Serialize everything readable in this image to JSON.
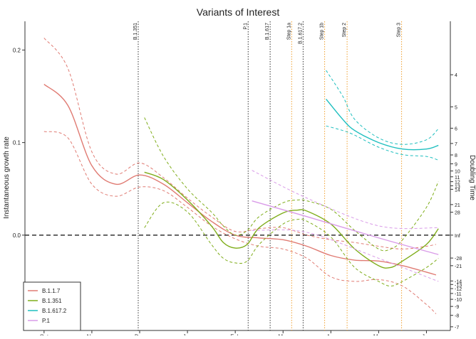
{
  "chart_data": {
    "type": "line",
    "title": "Variants of Interest",
    "y_label": "Instantaneous growth rate",
    "y2_label": "Doubling Time",
    "xlim": [
      -0.4,
      8.5
    ],
    "xticks": [
      {
        "value": 0,
        "label": "Oct"
      },
      {
        "value": 1,
        "label": "Nov"
      },
      {
        "value": 2,
        "label": "Dec"
      },
      {
        "value": 3,
        "label": "Jan"
      },
      {
        "value": 4,
        "label": "Feb"
      },
      {
        "value": 5,
        "label": "Mar"
      },
      {
        "value": 6,
        "label": "Apr"
      },
      {
        "value": 7,
        "label": "May"
      },
      {
        "value": 8,
        "label": "Jun"
      }
    ],
    "ylim": [
      -0.103,
      0.231
    ],
    "yticks": [
      {
        "value": 0,
        "label": "0.0"
      },
      0.1,
      0.2
    ],
    "y2scale": "doubling-time",
    "y2lim": [
      -6.73,
      3.0
    ],
    "y2ticks": [
      4,
      5,
      6,
      7,
      8,
      9,
      10,
      11,
      12,
      13,
      14,
      21,
      28,
      {
        "value": null,
        "label": "Inf"
      },
      -28,
      -21,
      -14,
      -13,
      -12,
      -11,
      -10,
      -9,
      -8,
      -7
    ],
    "hline": 0,
    "legend": "lower left",
    "vlines": [
      {
        "x": 1.97,
        "label": "B.1.351",
        "color": "#333333"
      },
      {
        "x": 4.27,
        "label": "P.1",
        "color": "#333333"
      },
      {
        "x": 4.73,
        "label": "B.1.617",
        "color": "#333333"
      },
      {
        "x": 5.18,
        "label": "Step 1a",
        "color": "#f0a030"
      },
      {
        "x": 5.42,
        "label": "B.1.617.2",
        "color": "#333333"
      },
      {
        "x": 5.87,
        "label": "Step 1b",
        "color": "#f0a030"
      },
      {
        "x": 6.34,
        "label": "Step 2",
        "color": "#f0a030"
      },
      {
        "x": 7.48,
        "label": "Step 3",
        "color": "#f0a030"
      }
    ],
    "series": [
      {
        "name": "B.1.1.7",
        "color": "#e07b73",
        "x": [
          0,
          0.5,
          1,
          1.5,
          2,
          2.5,
          3,
          3.5,
          4,
          4.5,
          5,
          5.5,
          6,
          6.5,
          7,
          7.5,
          8,
          8.2
        ],
        "values": [
          0.163,
          0.14,
          0.075,
          0.055,
          0.065,
          0.055,
          0.035,
          0.015,
          0.0,
          -0.003,
          -0.005,
          -0.012,
          -0.022,
          -0.027,
          -0.028,
          -0.033,
          -0.04,
          -0.043
        ],
        "lower": [
          0.112,
          0.105,
          0.055,
          0.042,
          0.052,
          0.048,
          0.03,
          0.01,
          -0.004,
          -0.012,
          -0.015,
          -0.025,
          -0.045,
          -0.05,
          -0.048,
          -0.055,
          -0.075,
          -0.085
        ],
        "upper": [
          0.213,
          0.18,
          0.09,
          0.066,
          0.078,
          0.062,
          0.04,
          0.02,
          0.004,
          0.007,
          0.008,
          0.0,
          -0.005,
          -0.008,
          -0.012,
          -0.015,
          -0.012,
          -0.01
        ]
      },
      {
        "name": "B.1.351",
        "color": "#7fad1a",
        "x": [
          2.1,
          2.5,
          3,
          3.5,
          3.75,
          4,
          4.25,
          4.5,
          5,
          5.3,
          5.5,
          6,
          6.5,
          7,
          7.25,
          7.5,
          8,
          8.25
        ],
        "values": [
          0.068,
          0.06,
          0.038,
          0.01,
          -0.008,
          -0.014,
          -0.01,
          0.008,
          0.024,
          0.027,
          0.026,
          0.012,
          -0.015,
          -0.033,
          -0.035,
          -0.028,
          -0.01,
          0.007
        ],
        "lower": [
          0.008,
          0.035,
          0.025,
          -0.01,
          -0.025,
          -0.03,
          -0.028,
          -0.01,
          0.012,
          0.017,
          0.015,
          -0.002,
          -0.035,
          -0.05,
          -0.055,
          -0.05,
          -0.035,
          -0.025
        ],
        "upper": [
          0.127,
          0.085,
          0.05,
          0.025,
          0.01,
          0.0,
          0.005,
          0.02,
          0.035,
          0.038,
          0.037,
          0.028,
          0.005,
          -0.015,
          -0.015,
          -0.005,
          0.03,
          0.058
        ]
      },
      {
        "name": "B.1.617.2",
        "color": "#1fbfbf",
        "x": [
          5.9,
          6.25,
          6.5,
          7,
          7.5,
          8,
          8.25
        ],
        "values": [
          0.147,
          0.125,
          0.113,
          0.1,
          0.093,
          0.093,
          0.097
        ],
        "lower": [
          0.118,
          0.113,
          0.108,
          0.095,
          0.087,
          0.085,
          0.081
        ],
        "upper": [
          0.178,
          0.15,
          0.125,
          0.105,
          0.098,
          0.103,
          0.115
        ]
      },
      {
        "name": "P.1",
        "color": "#d99be8",
        "x": [
          4.35,
          5.5,
          7,
          8.25
        ],
        "values": [
          0.037,
          0.02,
          -0.003,
          -0.021
        ],
        "lower": [
          0.005,
          0.003,
          -0.025,
          -0.05
        ],
        "upper": [
          0.07,
          0.04,
          0.01,
          0.008
        ]
      }
    ]
  }
}
